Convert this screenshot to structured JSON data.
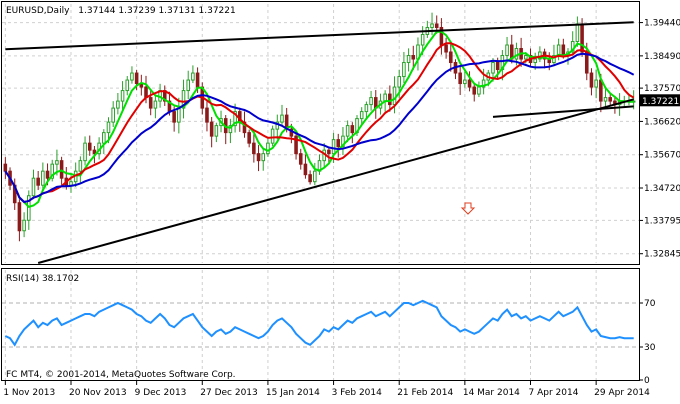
{
  "window": {
    "symbol": "EURUSD,Daily",
    "ohlc": "1.37144 1.37239 1.37131 1.37221"
  },
  "rsi_label": "RSI(14) 38.1702",
  "copyright": "FC MT4, © 2001-2014, MetaQuotes Software Corp.",
  "signal_icon": "down-arrow-icon",
  "colors": {
    "bull": "#2ca02c",
    "bear": "#8b1a1a",
    "ma_fast": "#00e000",
    "ma_mid": "#e00000",
    "ma_slow": "#0000cc",
    "rsi": "#1e90ff",
    "trendline": "#000000",
    "current_price_box": "#000000",
    "signal_arrow": "#e04020"
  },
  "chart_data": [
    {
      "type": "candlestick",
      "title": "EURUSD,Daily",
      "ylim": [
        1.3258,
        1.3997
      ],
      "y_ticks": [
        "1.39440",
        "1.38490",
        "1.37570",
        "1.36620",
        "1.35670",
        "1.34720",
        "1.33795",
        "1.32845"
      ],
      "x_ticks": [
        "1 Nov 2013",
        "20 Nov 2013",
        "9 Dec 2013",
        "27 Dec 2013",
        "15 Jan 2014",
        "3 Feb 2014",
        "21 Feb 2014",
        "14 Mar 2014",
        "7 Apr 2014",
        "29 Apr 2014"
      ],
      "current_price": "1.37221",
      "grid": true,
      "bars": 135,
      "ohlc_anchor_closes": [
        1.352,
        1.348,
        1.343,
        1.335,
        1.338,
        1.345,
        1.35,
        1.348,
        1.352,
        1.35,
        1.354,
        1.355,
        1.35,
        1.348,
        1.349,
        1.352,
        1.355,
        1.36,
        1.358,
        1.357,
        1.36,
        1.363,
        1.366,
        1.37,
        1.372,
        1.375,
        1.378,
        1.38,
        1.377,
        1.376,
        1.373,
        1.37,
        1.372,
        1.375,
        1.372,
        1.369,
        1.366,
        1.37,
        1.375,
        1.378,
        1.38,
        1.376,
        1.37,
        1.366,
        1.362,
        1.365,
        1.367,
        1.363,
        1.365,
        1.369,
        1.366,
        1.363,
        1.36,
        1.357,
        1.355,
        1.357,
        1.36,
        1.364,
        1.366,
        1.368,
        1.364,
        1.362,
        1.357,
        1.354,
        1.351,
        1.349,
        1.352,
        1.355,
        1.358,
        1.357,
        1.361,
        1.359,
        1.362,
        1.365,
        1.363,
        1.367,
        1.369,
        1.371,
        1.373,
        1.37,
        1.372,
        1.374,
        1.371,
        1.376,
        1.379,
        1.383,
        1.385,
        1.384,
        1.388,
        1.391,
        1.393,
        1.394,
        1.393,
        1.388,
        1.386,
        1.383,
        1.38,
        1.377,
        1.378,
        1.376,
        1.374,
        1.376,
        1.378,
        1.38,
        1.383,
        1.381,
        1.385,
        1.388,
        1.384,
        1.387,
        1.384,
        1.385,
        1.383,
        1.384,
        1.386,
        1.384,
        1.383,
        1.385,
        1.388,
        1.385,
        1.386,
        1.389,
        1.394,
        1.386,
        1.38,
        1.376,
        1.378,
        1.372,
        1.373,
        1.372,
        1.371,
        1.372,
        1.372,
        1.372,
        1.372
      ],
      "moving_averages": [
        {
          "color_key": "ma_fast",
          "period": "fast"
        },
        {
          "color_key": "ma_mid",
          "period": "mid"
        },
        {
          "color_key": "ma_slow",
          "period": "slow"
        }
      ],
      "trendlines": [
        {
          "from": [
            0,
            1.3868
          ],
          "to": [
            134,
            1.3945
          ]
        },
        {
          "from": [
            7,
            1.3258
          ],
          "to": [
            134,
            1.3725
          ]
        },
        {
          "from": [
            104,
            1.3675
          ],
          "to": [
            134,
            1.3705
          ]
        }
      ]
    },
    {
      "type": "line",
      "title": "RSI(14) 38.1702",
      "ylim": [
        0,
        100
      ],
      "y_ticks": [
        "70",
        "30",
        "0"
      ],
      "levels": [
        70,
        30
      ],
      "value_last": 38.1702,
      "series": [
        {
          "values": [
            40,
            38,
            32,
            40,
            46,
            50,
            54,
            48,
            52,
            50,
            54,
            56,
            50,
            52,
            54,
            56,
            58,
            60,
            60,
            58,
            62,
            64,
            66,
            68,
            70,
            68,
            66,
            64,
            60,
            58,
            54,
            52,
            56,
            60,
            56,
            50,
            48,
            52,
            56,
            58,
            60,
            54,
            48,
            44,
            40,
            44,
            46,
            42,
            44,
            48,
            46,
            44,
            42,
            40,
            38,
            40,
            44,
            50,
            54,
            56,
            52,
            48,
            42,
            38,
            34,
            32,
            36,
            40,
            46,
            44,
            48,
            46,
            50,
            54,
            52,
            56,
            58,
            60,
            62,
            58,
            60,
            62,
            58,
            62,
            66,
            70,
            70,
            68,
            70,
            72,
            70,
            68,
            66,
            58,
            54,
            50,
            48,
            44,
            46,
            44,
            42,
            44,
            48,
            52,
            56,
            54,
            60,
            64,
            58,
            60,
            56,
            58,
            54,
            56,
            58,
            56,
            54,
            58,
            62,
            58,
            60,
            62,
            66,
            58,
            50,
            44,
            46,
            40,
            39,
            38,
            38,
            39,
            38,
            38,
            38
          ]
        }
      ]
    }
  ]
}
